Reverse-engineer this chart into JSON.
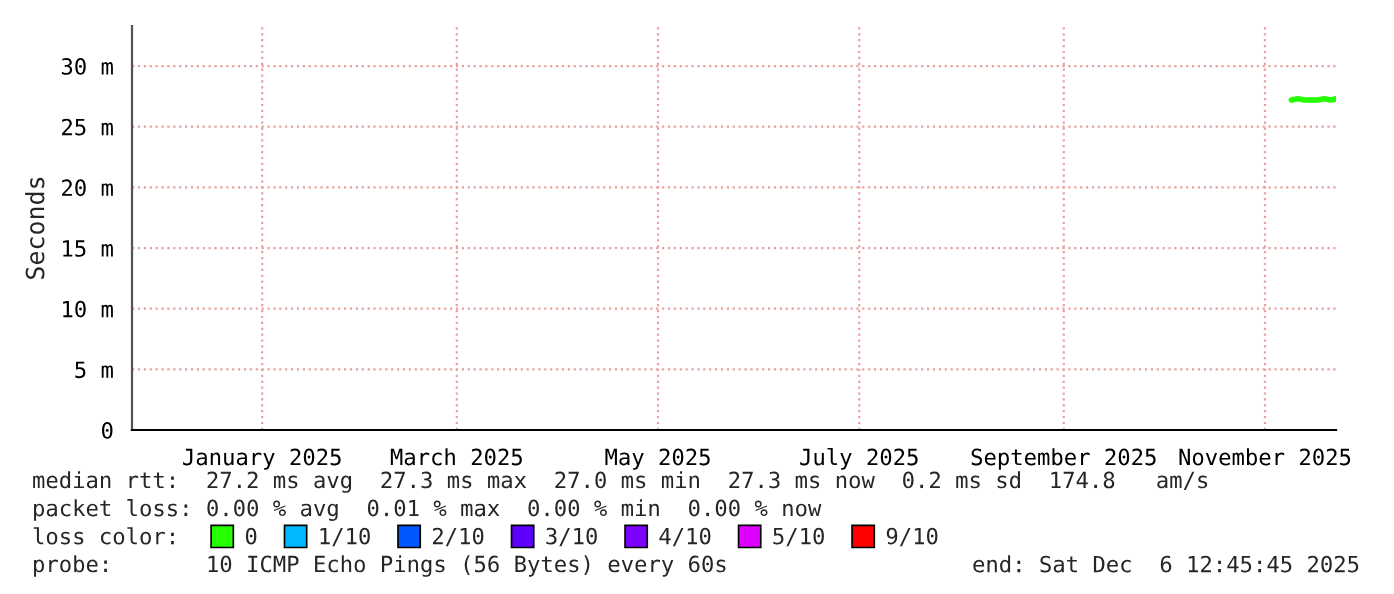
{
  "chart_data": {
    "type": "line",
    "ylabel": "Seconds",
    "xlim": [
      "2024-12-06T12:45",
      "2025-12-06T12:45"
    ],
    "xticks": [
      {
        "value": "2025-01-15",
        "label": "January 2025"
      },
      {
        "value": "2025-03-15",
        "label": "March 2025"
      },
      {
        "value": "2025-05-15",
        "label": "May 2025"
      },
      {
        "value": "2025-07-15",
        "label": "July 2025"
      },
      {
        "value": "2025-09-15",
        "label": "September 2025"
      },
      {
        "value": "2025-11-15",
        "label": "November 2025"
      }
    ],
    "ylim": [
      0,
      33.3
    ],
    "yticks": [
      0,
      {
        "value": 5,
        "label": "5 m"
      },
      {
        "value": 10,
        "label": "10 m"
      },
      {
        "value": 15,
        "label": "15 m"
      },
      {
        "value": 20,
        "label": "20 m"
      },
      {
        "value": 25,
        "label": "25 m"
      },
      {
        "value": 30,
        "label": "30 m"
      }
    ],
    "grid": true,
    "legend": "bottom",
    "legend_title": "loss color:",
    "series": [
      {
        "name": "0",
        "color": "#26ff00",
        "x": [
          "2025-11-23",
          "2025-11-25",
          "2025-11-27",
          "2025-11-29",
          "2025-12-01",
          "2025-12-03",
          "2025-12-05",
          "2025-12-06T12:45"
        ],
        "values": [
          27.2,
          27.3,
          27.2,
          27.2,
          27.2,
          27.3,
          27.2,
          27.3
        ]
      },
      {
        "name": "1/10",
        "color": "#00b8ff"
      },
      {
        "name": "2/10",
        "color": "#0059ff"
      },
      {
        "name": "3/10",
        "color": "#5e00ff"
      },
      {
        "name": "4/10",
        "color": "#7e00ff"
      },
      {
        "name": "5/10",
        "color": "#dd00ff"
      },
      {
        "name": "9/10",
        "color": "#ff0000"
      }
    ],
    "annotations": [
      "median rtt:  27.2 ms avg  27.3 ms max  27.0 ms min  27.3 ms now  0.2 ms sd  174.8   am/s",
      "packet loss: 0.00 % avg  0.01 % max  0.00 % min  0.00 % now",
      "probe:       10 ICMP Echo Pings (56 Bytes) every 60s",
      "end: Sat Dec  6 12:45:45 2025"
    ]
  }
}
